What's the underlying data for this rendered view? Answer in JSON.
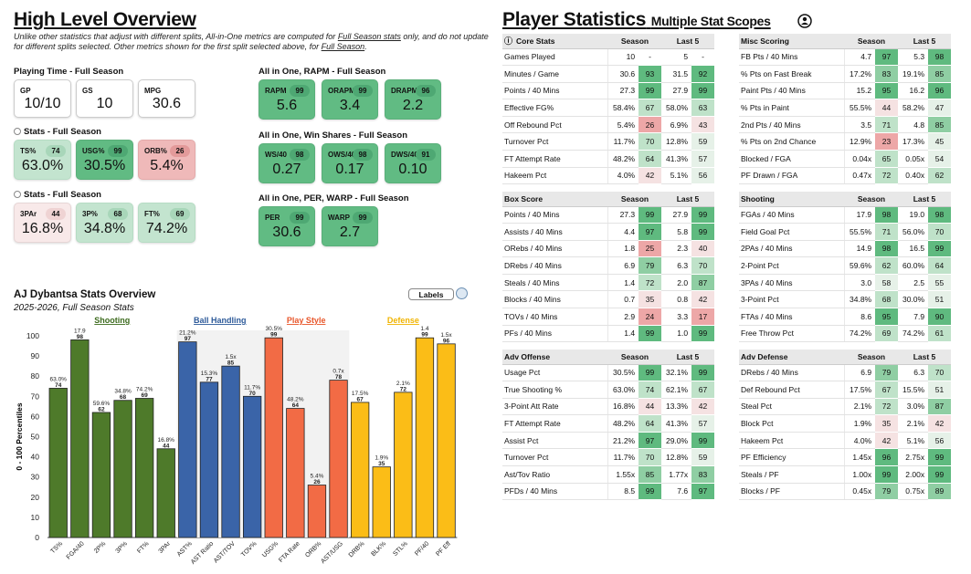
{
  "overview": {
    "title": "High Level Overview",
    "note1": "Unlike other statistics that adjust with different splits, All-in-One metrics are computed for ",
    "note_link1": "Full Season stats",
    "note2": " only, and do not update for different splits selected. Other metrics shown for the first split selected above, for ",
    "note_link2": "Full Season",
    "note3": ".",
    "playing_time": {
      "title": "Playing Time - Full Season",
      "cards": [
        {
          "label": "GP",
          "value": "10/10"
        },
        {
          "label": "GS",
          "value": "10"
        },
        {
          "label": "MPG",
          "value": "30.6"
        }
      ]
    },
    "stats1": {
      "title": "Stats - Full Season",
      "cards": [
        {
          "label": "TS%",
          "pct": "74",
          "value": "63.0%",
          "tone": "lg"
        },
        {
          "label": "USG%",
          "pct": "99",
          "value": "30.5%",
          "tone": "g"
        },
        {
          "label": "ORB%",
          "pct": "26",
          "value": "5.4%",
          "tone": "r"
        }
      ]
    },
    "stats2": {
      "title": "Stats - Full Season",
      "cards": [
        {
          "label": "3PAr",
          "pct": "44",
          "value": "16.8%",
          "tone": "pk"
        },
        {
          "label": "3P%",
          "pct": "68",
          "value": "34.8%",
          "tone": "lg"
        },
        {
          "label": "FT%",
          "pct": "69",
          "value": "74.2%",
          "tone": "lg"
        }
      ]
    },
    "rapm": {
      "title": "All in One, RAPM - Full Season",
      "cards": [
        {
          "label": "RAPM",
          "pct": "99",
          "value": "5.6",
          "tone": "g"
        },
        {
          "label": "ORAPM",
          "pct": "99",
          "value": "3.4",
          "tone": "g"
        },
        {
          "label": "DRAPM",
          "pct": "96",
          "value": "2.2",
          "tone": "g"
        }
      ]
    },
    "winshares": {
      "title": "All in One, Win Shares - Full Season",
      "cards": [
        {
          "label": "WS/40",
          "pct": "98",
          "value": "0.27",
          "tone": "g"
        },
        {
          "label": "OWS/40",
          "pct": "98",
          "value": "0.17",
          "tone": "g"
        },
        {
          "label": "DWS/40",
          "pct": "91",
          "value": "0.10",
          "tone": "g"
        }
      ]
    },
    "per": {
      "title": "All in One, PER, WARP - Full Season",
      "cards": [
        {
          "label": "PER",
          "pct": "99",
          "value": "30.6",
          "tone": "g"
        },
        {
          "label": "WARP",
          "pct": "99",
          "value": "2.7",
          "tone": "g"
        }
      ]
    }
  },
  "chart": {
    "title": "AJ Dybantsa Stats Overview",
    "subtitle": "2025-2026, Full Season Stats",
    "labels_button": "Labels",
    "ylabel": "0 - 100 Percentiles",
    "groups": [
      {
        "name": "Shooting",
        "color": "#3d6b1e",
        "start": 0,
        "end": 5
      },
      {
        "name": "Ball Handling",
        "color": "#2e5b9a",
        "start": 6,
        "end": 9
      },
      {
        "name": "Play Style",
        "color": "#e8562a",
        "start": 10,
        "end": 13
      },
      {
        "name": "Defense",
        "color": "#f0b400",
        "start": 14,
        "end": 18
      }
    ]
  },
  "chart_data": {
    "type": "bar",
    "title": "AJ Dybantsa Stats Overview",
    "ylabel": "0 - 100 Percentiles",
    "ylim": [
      0,
      100
    ],
    "yticks": [
      0,
      10,
      20,
      30,
      40,
      50,
      60,
      70,
      80,
      90,
      100
    ],
    "categories": [
      "TS%",
      "FGA/40",
      "2P%",
      "3P%",
      "FT%",
      "3PAr",
      "AST%",
      "AST Ratio",
      "AST/TOV",
      "TOV%",
      "USG%",
      "FTA Rate",
      "ORB%",
      "AST/USG",
      "DRB%",
      "BLK%",
      "STL%",
      "PF/40",
      "PF Eff"
    ],
    "values": [
      74,
      98,
      62,
      68,
      69,
      44,
      97,
      77,
      85,
      70,
      99,
      64,
      26,
      78,
      67,
      35,
      72,
      99,
      96
    ],
    "raw_labels": [
      "63.0%",
      "17.9",
      "59.6%",
      "34.8%",
      "74.2%",
      "16.8%",
      "21.2%",
      "15.3%",
      "1.5x",
      "11.7%",
      "30.5%",
      "48.2%",
      "5.4%",
      "0.7x",
      "17.5%",
      "1.9%",
      "2.1%",
      "1.4",
      "1.5x"
    ],
    "colors": [
      "#4e7a2a",
      "#4e7a2a",
      "#4e7a2a",
      "#4e7a2a",
      "#4e7a2a",
      "#4e7a2a",
      "#3a64a8",
      "#3a64a8",
      "#3a64a8",
      "#3a64a8",
      "#f26b45",
      "#f26b45",
      "#f26b45",
      "#f26b45",
      "#fbbd17",
      "#fbbd17",
      "#fbbd17",
      "#fbbd17",
      "#fbbd17"
    ]
  },
  "player_stats": {
    "title": "Player Statistics",
    "subtitle": "Multiple Stat Scopes",
    "col_season": "Season",
    "col_last5": "Last 5",
    "core": {
      "title": "Core Stats",
      "rows": [
        {
          "stat": "Games Played",
          "s": "10",
          "sp": "-",
          "l": "5",
          "lp": "-"
        },
        {
          "stat": "Minutes / Game",
          "s": "30.6",
          "sp": "93",
          "l": "31.5",
          "lp": "92"
        },
        {
          "stat": "Points / 40 Mins",
          "s": "27.3",
          "sp": "99",
          "l": "27.9",
          "lp": "99"
        },
        {
          "stat": "Effective FG%",
          "s": "58.4%",
          "sp": "67",
          "l": "58.0%",
          "lp": "63"
        },
        {
          "stat": "Off Rebound Pct",
          "s": "5.4%",
          "sp": "26",
          "l": "6.9%",
          "lp": "43"
        },
        {
          "stat": "Turnover Pct",
          "s": "11.7%",
          "sp": "70",
          "l": "12.8%",
          "lp": "59"
        },
        {
          "stat": "FT Attempt Rate",
          "s": "48.2%",
          "sp": "64",
          "l": "41.3%",
          "lp": "57"
        },
        {
          "stat": "Hakeem Pct",
          "s": "4.0%",
          "sp": "42",
          "l": "5.1%",
          "lp": "56"
        }
      ]
    },
    "misc": {
      "title": "Misc Scoring",
      "rows": [
        {
          "stat": "FB Pts / 40 Mins",
          "s": "4.7",
          "sp": "97",
          "l": "5.3",
          "lp": "98"
        },
        {
          "stat": "% Pts on Fast Break",
          "s": "17.2%",
          "sp": "83",
          "l": "19.1%",
          "lp": "85"
        },
        {
          "stat": "Paint Pts / 40 Mins",
          "s": "15.2",
          "sp": "95",
          "l": "16.2",
          "lp": "96"
        },
        {
          "stat": "% Pts in Paint",
          "s": "55.5%",
          "sp": "44",
          "l": "58.2%",
          "lp": "47"
        },
        {
          "stat": "2nd Pts / 40 Mins",
          "s": "3.5",
          "sp": "71",
          "l": "4.8",
          "lp": "85"
        },
        {
          "stat": "% Pts on 2nd Chance",
          "s": "12.9%",
          "sp": "23",
          "l": "17.3%",
          "lp": "45"
        },
        {
          "stat": "Blocked / FGA",
          "s": "0.04x",
          "sp": "65",
          "l": "0.05x",
          "lp": "54"
        },
        {
          "stat": "PF Drawn / FGA",
          "s": "0.47x",
          "sp": "72",
          "l": "0.40x",
          "lp": "62"
        }
      ]
    },
    "box": {
      "title": "Box Score",
      "rows": [
        {
          "stat": "Points / 40 Mins",
          "s": "27.3",
          "sp": "99",
          "l": "27.9",
          "lp": "99"
        },
        {
          "stat": "Assists / 40 Mins",
          "s": "4.4",
          "sp": "97",
          "l": "5.8",
          "lp": "99"
        },
        {
          "stat": "ORebs / 40 Mins",
          "s": "1.8",
          "sp": "25",
          "l": "2.3",
          "lp": "40"
        },
        {
          "stat": "DRebs / 40 Mins",
          "s": "6.9",
          "sp": "79",
          "l": "6.3",
          "lp": "70"
        },
        {
          "stat": "Steals / 40 Mins",
          "s": "1.4",
          "sp": "72",
          "l": "2.0",
          "lp": "87"
        },
        {
          "stat": "Blocks / 40 Mins",
          "s": "0.7",
          "sp": "35",
          "l": "0.8",
          "lp": "42"
        },
        {
          "stat": "TOVs / 40 Mins",
          "s": "2.9",
          "sp": "24",
          "l": "3.3",
          "lp": "17"
        },
        {
          "stat": "PFs / 40 Mins",
          "s": "1.4",
          "sp": "99",
          "l": "1.0",
          "lp": "99"
        }
      ]
    },
    "shooting": {
      "title": "Shooting",
      "rows": [
        {
          "stat": "FGAs / 40 Mins",
          "s": "17.9",
          "sp": "98",
          "l": "19.0",
          "lp": "98"
        },
        {
          "stat": "Field Goal Pct",
          "s": "55.5%",
          "sp": "71",
          "l": "56.0%",
          "lp": "70"
        },
        {
          "stat": "2PAs / 40 Mins",
          "s": "14.9",
          "sp": "98",
          "l": "16.5",
          "lp": "99"
        },
        {
          "stat": "2-Point Pct",
          "s": "59.6%",
          "sp": "62",
          "l": "60.0%",
          "lp": "64"
        },
        {
          "stat": "3PAs / 40 Mins",
          "s": "3.0",
          "sp": "58",
          "l": "2.5",
          "lp": "55"
        },
        {
          "stat": "3-Point Pct",
          "s": "34.8%",
          "sp": "68",
          "l": "30.0%",
          "lp": "51"
        },
        {
          "stat": "FTAs / 40 Mins",
          "s": "8.6",
          "sp": "95",
          "l": "7.9",
          "lp": "90"
        },
        {
          "stat": "Free Throw Pct",
          "s": "74.2%",
          "sp": "69",
          "l": "74.2%",
          "lp": "61"
        }
      ]
    },
    "advoff": {
      "title": "Adv Offense",
      "rows": [
        {
          "stat": "Usage Pct",
          "s": "30.5%",
          "sp": "99",
          "l": "32.1%",
          "lp": "99"
        },
        {
          "stat": "True Shooting %",
          "s": "63.0%",
          "sp": "74",
          "l": "62.1%",
          "lp": "67"
        },
        {
          "stat": "3-Point Att Rate",
          "s": "16.8%",
          "sp": "44",
          "l": "13.3%",
          "lp": "42"
        },
        {
          "stat": "FT Attempt Rate",
          "s": "48.2%",
          "sp": "64",
          "l": "41.3%",
          "lp": "57"
        },
        {
          "stat": "Assist Pct",
          "s": "21.2%",
          "sp": "97",
          "l": "29.0%",
          "lp": "99"
        },
        {
          "stat": "Turnover Pct",
          "s": "11.7%",
          "sp": "70",
          "l": "12.8%",
          "lp": "59"
        },
        {
          "stat": "Ast/Tov Ratio",
          "s": "1.55x",
          "sp": "85",
          "l": "1.77x",
          "lp": "83"
        },
        {
          "stat": "PFDs / 40 Mins",
          "s": "8.5",
          "sp": "99",
          "l": "7.6",
          "lp": "97"
        }
      ]
    },
    "advdef": {
      "title": "Adv Defense",
      "rows": [
        {
          "stat": "DRebs / 40 Mins",
          "s": "6.9",
          "sp": "79",
          "l": "6.3",
          "lp": "70"
        },
        {
          "stat": "Def Rebound Pct",
          "s": "17.5%",
          "sp": "67",
          "l": "15.5%",
          "lp": "51"
        },
        {
          "stat": "Steal Pct",
          "s": "2.1%",
          "sp": "72",
          "l": "3.0%",
          "lp": "87"
        },
        {
          "stat": "Block Pct",
          "s": "1.9%",
          "sp": "35",
          "l": "2.1%",
          "lp": "42"
        },
        {
          "stat": "Hakeem Pct",
          "s": "4.0%",
          "sp": "42",
          "l": "5.1%",
          "lp": "56"
        },
        {
          "stat": "PF Efficiency",
          "s": "1.45x",
          "sp": "96",
          "l": "2.75x",
          "lp": "99"
        },
        {
          "stat": "Steals / PF",
          "s": "1.00x",
          "sp": "99",
          "l": "2.00x",
          "lp": "99"
        },
        {
          "stat": "Blocks / PF",
          "s": "0.45x",
          "sp": "79",
          "l": "0.75x",
          "lp": "89"
        }
      ]
    }
  }
}
